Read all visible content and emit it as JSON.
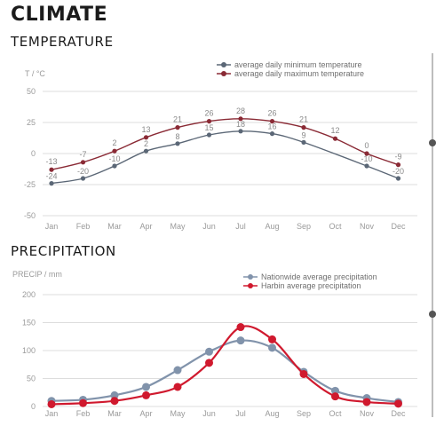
{
  "page": {
    "title": "CLIMATE",
    "temperature_heading": "TEMPERATURE",
    "precipitation_heading": "PRECIPITATION"
  },
  "colors": {
    "min_series": "#5b6776",
    "max_series": "#8a2a35",
    "nationwide": "#8193ab",
    "harbin": "#d0192e",
    "grid": "#dddddd",
    "axis_text": "#9a9a9a"
  },
  "chart_data": [
    {
      "type": "line",
      "ylabel": "T / °C",
      "ylim": [
        -50,
        50
      ],
      "yticks": [
        50,
        25,
        0,
        -25,
        -50
      ],
      "categories": [
        "Jan",
        "Feb",
        "Mar",
        "Apr",
        "May",
        "Jun",
        "Jul",
        "Aug",
        "Sep",
        "Oct",
        "Nov",
        "Dec"
      ],
      "legend_position": "top-right",
      "grid": true,
      "series": [
        {
          "name": "average daily minimum temperature",
          "values": [
            -24,
            -20,
            -10,
            2,
            8,
            15,
            18,
            16,
            9,
            null,
            -10,
            -20
          ],
          "labels": [
            "-24",
            "-20",
            "-10",
            "2",
            "8",
            "15",
            "18",
            "16",
            "9",
            "",
            "-10",
            "-20"
          ]
        },
        {
          "name": "average daily maximum temperature",
          "values": [
            -13,
            -7,
            2,
            13,
            21,
            26,
            28,
            26,
            21,
            12,
            0,
            -9
          ],
          "labels": [
            "-13",
            "-7",
            "2",
            "13",
            "21",
            "26",
            "28",
            "26",
            "21",
            "12",
            "0",
            "-9"
          ]
        }
      ]
    },
    {
      "type": "line",
      "ylabel": "PRECIP / mm",
      "ylim": [
        0,
        200
      ],
      "yticks": [
        200,
        150,
        100,
        50,
        0
      ],
      "categories": [
        "Jan",
        "Feb",
        "Mar",
        "Apr",
        "May",
        "Jun",
        "Jul",
        "Aug",
        "Sep",
        "Oct",
        "Nov",
        "Dec"
      ],
      "legend_position": "top-right",
      "grid": true,
      "series": [
        {
          "name": "Nationwide average precipitation",
          "values": [
            10,
            12,
            20,
            35,
            65,
            98,
            118,
            105,
            62,
            28,
            15,
            8
          ]
        },
        {
          "name": "Harbin average precipitation",
          "values": [
            4,
            6,
            10,
            20,
            35,
            78,
            142,
            120,
            58,
            18,
            8,
            5
          ]
        }
      ]
    }
  ]
}
